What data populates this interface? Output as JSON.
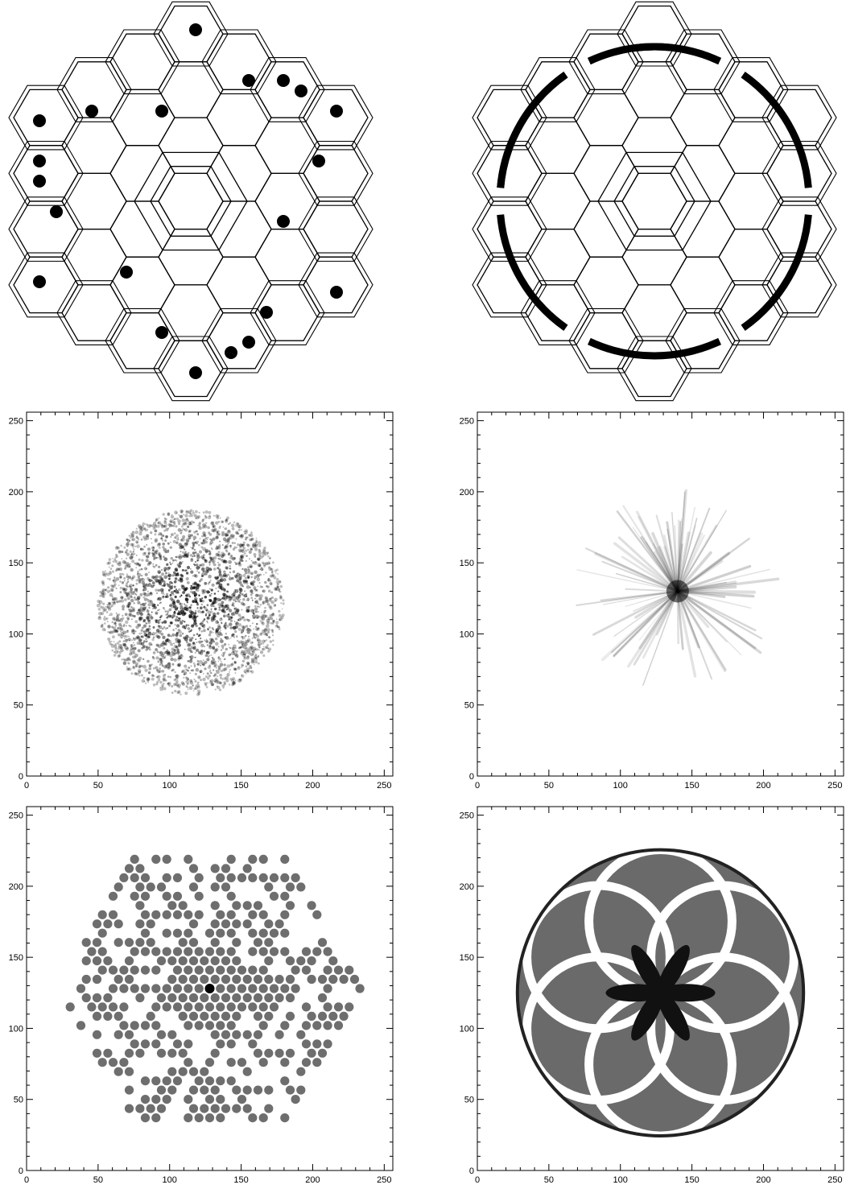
{
  "figure": {
    "panels": [
      {
        "id": "mask-pinholes",
        "kind": "mask",
        "overlay": "pinholes"
      },
      {
        "id": "mask-annulus",
        "kind": "mask",
        "overlay": "annulus"
      },
      {
        "id": "image-speckle",
        "kind": "image",
        "texture": "speckle"
      },
      {
        "id": "image-streaks",
        "kind": "image",
        "texture": "streaks"
      },
      {
        "id": "image-dots",
        "kind": "image",
        "texture": "dots"
      },
      {
        "id": "image-rosette",
        "kind": "image",
        "texture": "rosette"
      }
    ]
  },
  "chart_data": [
    {
      "type": "heatmap",
      "panel": "image-speckle",
      "xlim": [
        0,
        256
      ],
      "ylim": [
        0,
        256
      ],
      "xticks": [
        0,
        50,
        100,
        150,
        200,
        250
      ],
      "yticks": [
        0,
        50,
        100,
        150,
        200,
        250
      ],
      "xticklabels": [
        "0",
        "50",
        "100",
        "150",
        "200",
        "250"
      ],
      "yticklabels": [
        "0",
        "50",
        "100",
        "150",
        "200",
        "250"
      ],
      "center": [
        115,
        122
      ],
      "extent_radius": 65
    },
    {
      "type": "heatmap",
      "panel": "image-streaks",
      "xlim": [
        0,
        256
      ],
      "ylim": [
        0,
        256
      ],
      "xticks": [
        0,
        50,
        100,
        150,
        200,
        250
      ],
      "yticks": [
        0,
        50,
        100,
        150,
        200,
        250
      ],
      "xticklabels": [
        "0",
        "50",
        "100",
        "150",
        "200",
        "250"
      ],
      "yticklabels": [
        "0",
        "50",
        "100",
        "150",
        "200",
        "250"
      ],
      "center": [
        140,
        130
      ],
      "extent_radius": 70
    },
    {
      "type": "heatmap",
      "panel": "image-dots",
      "xlim": [
        0,
        256
      ],
      "ylim": [
        0,
        256
      ],
      "xticks": [
        0,
        50,
        100,
        150,
        200,
        250
      ],
      "yticks": [
        0,
        50,
        100,
        150,
        200,
        250
      ],
      "xticklabels": [
        "0",
        "50",
        "100",
        "150",
        "200",
        "250"
      ],
      "yticklabels": [
        "0",
        "50",
        "100",
        "150",
        "200",
        "250"
      ],
      "center": [
        128,
        128
      ],
      "extent_radius": 108
    },
    {
      "type": "heatmap",
      "panel": "image-rosette",
      "xlim": [
        0,
        256
      ],
      "ylim": [
        0,
        256
      ],
      "xticks": [
        0,
        50,
        100,
        150,
        200,
        250
      ],
      "yticks": [
        0,
        50,
        100,
        150,
        200,
        250
      ],
      "xticklabels": [
        "0",
        "50",
        "100",
        "150",
        "200",
        "250"
      ],
      "yticklabels": [
        "0",
        "50",
        "100",
        "150",
        "200",
        "250"
      ],
      "center": [
        128,
        125
      ],
      "extent_radius": 100
    }
  ]
}
